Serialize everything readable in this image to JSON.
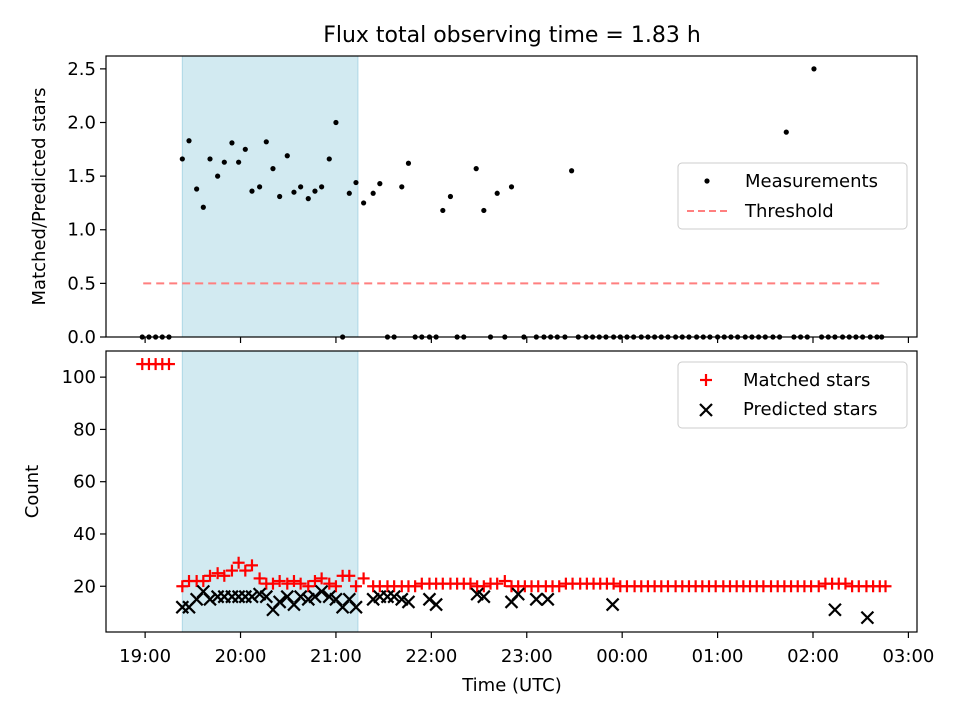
{
  "figure": {
    "title": "Flux total observing time = 1.83 h"
  },
  "chart_data": [
    {
      "type": "scatter",
      "title": "Flux total observing time = 1.83 h",
      "xlabel": "",
      "ylabel": "Matched/Predicted stars",
      "xlim": [
        18.59,
        27.09
      ],
      "ylim": [
        0,
        2.62
      ],
      "yticks": [
        0.0,
        0.5,
        1.0,
        1.5,
        2.0,
        2.5
      ],
      "ytick_labels": [
        "0.0",
        "0.5",
        "1.0",
        "1.5",
        "2.0",
        "2.5"
      ],
      "xticks": [
        19,
        20,
        21,
        22,
        23,
        24,
        25,
        26,
        27
      ],
      "shaded_span": [
        19.39,
        21.23
      ],
      "shaded_color": "#add8e6",
      "legend_loc": "center right",
      "threshold": {
        "name": "Threshold",
        "value": 0.5,
        "x_range": [
          18.98,
          26.72
        ],
        "color": "#ff7f7f",
        "style": "dashed"
      },
      "series": [
        {
          "name": "Measurements",
          "marker": "dot",
          "color": "#000000",
          "x": [
            18.97,
            19.04,
            19.11,
            19.18,
            19.25,
            19.39,
            19.46,
            19.54,
            19.61,
            19.68,
            19.76,
            19.83,
            19.91,
            19.98,
            20.05,
            20.12,
            20.2,
            20.27,
            20.34,
            20.41,
            20.49,
            20.56,
            20.63,
            20.71,
            20.78,
            20.85,
            20.93,
            21.0,
            21.07,
            21.14,
            21.21,
            21.29,
            21.39,
            21.46,
            21.54,
            21.61,
            21.69,
            21.76,
            21.83,
            21.9,
            21.98,
            22.05,
            22.12,
            22.2,
            22.27,
            22.34,
            22.47,
            22.55,
            22.62,
            22.69,
            22.77,
            22.84,
            22.97,
            23.1,
            23.18,
            23.25,
            23.32,
            23.4,
            23.47,
            23.54,
            23.62,
            23.69,
            23.76,
            23.83,
            23.91,
            23.98,
            24.05,
            24.12,
            24.2,
            24.27,
            24.34,
            24.41,
            24.48,
            24.56,
            24.63,
            24.7,
            24.78,
            24.85,
            24.92,
            25.0,
            25.07,
            25.14,
            25.21,
            25.29,
            25.36,
            25.43,
            25.5,
            25.58,
            25.65,
            25.72,
            25.8,
            25.87,
            25.94,
            26.01,
            26.09,
            26.16,
            26.23,
            26.31,
            26.38,
            26.45,
            26.52,
            26.6,
            26.67,
            26.72
          ],
          "y": [
            0,
            0,
            0,
            0,
            0,
            1.66,
            1.83,
            1.38,
            1.21,
            1.66,
            1.5,
            1.63,
            1.81,
            1.63,
            1.75,
            1.36,
            1.4,
            1.82,
            1.57,
            1.31,
            1.69,
            1.35,
            1.4,
            1.29,
            1.36,
            1.4,
            1.66,
            2.0,
            0,
            1.34,
            1.44,
            1.25,
            1.34,
            1.43,
            0,
            0,
            1.4,
            1.62,
            0,
            0,
            0,
            0,
            1.18,
            1.31,
            0,
            0,
            1.57,
            1.18,
            0,
            1.34,
            0,
            1.4,
            0,
            0,
            0,
            0,
            0,
            0,
            1.55,
            0,
            0,
            0,
            0,
            0,
            0,
            0,
            0,
            0,
            0,
            0,
            0,
            0,
            0,
            0,
            0,
            0,
            0,
            0,
            0,
            0,
            0,
            0,
            0,
            0,
            0,
            0,
            0,
            0,
            0,
            1.91,
            0,
            0,
            0,
            2.5,
            0,
            0,
            0,
            0,
            0,
            0,
            0,
            0,
            0,
            0
          ]
        }
      ]
    },
    {
      "type": "scatter",
      "title": "",
      "xlabel": "Time (UTC)",
      "ylabel": "Count",
      "xlim": [
        18.59,
        27.09
      ],
      "ylim": [
        2.5,
        110
      ],
      "yticks": [
        20,
        40,
        60,
        80,
        100
      ],
      "ytick_labels": [
        "20",
        "40",
        "60",
        "80",
        "100"
      ],
      "xticks": [
        19,
        20,
        21,
        22,
        23,
        24,
        25,
        26,
        27
      ],
      "xtick_labels": [
        "19:00",
        "20:00",
        "21:00",
        "22:00",
        "23:00",
        "00:00",
        "01:00",
        "02:00",
        "03:00"
      ],
      "shaded_span": [
        19.39,
        21.23
      ],
      "shaded_color": "#add8e6",
      "legend_loc": "upper right",
      "series": [
        {
          "name": "Matched stars",
          "marker": "plus",
          "color": "#ff0000",
          "x": [
            18.97,
            19.04,
            19.11,
            19.18,
            19.25,
            19.39,
            19.46,
            19.54,
            19.61,
            19.68,
            19.76,
            19.83,
            19.91,
            19.98,
            20.05,
            20.12,
            20.2,
            20.27,
            20.34,
            20.41,
            20.49,
            20.56,
            20.63,
            20.71,
            20.78,
            20.85,
            20.93,
            21.0,
            21.07,
            21.14,
            21.21,
            21.29,
            21.39,
            21.46,
            21.54,
            21.61,
            21.69,
            21.76,
            21.83,
            21.9,
            21.98,
            22.05,
            22.12,
            22.2,
            22.27,
            22.34,
            22.41,
            22.48,
            22.55,
            22.62,
            22.69,
            22.77,
            22.84,
            22.91,
            22.98,
            23.05,
            23.12,
            23.2,
            23.27,
            23.34,
            23.41,
            23.48,
            23.56,
            23.63,
            23.7,
            23.77,
            23.84,
            23.91,
            23.98,
            24.05,
            24.13,
            24.2,
            24.27,
            24.34,
            24.41,
            24.48,
            24.56,
            24.63,
            24.7,
            24.77,
            24.84,
            24.91,
            24.98,
            25.06,
            25.13,
            25.2,
            25.27,
            25.34,
            25.41,
            25.48,
            25.56,
            25.63,
            25.7,
            25.77,
            25.84,
            25.91,
            25.98,
            26.06,
            26.13,
            26.2,
            26.27,
            26.34,
            26.41,
            26.48,
            26.56,
            26.63,
            26.7,
            26.76
          ],
          "y": [
            105,
            105,
            105,
            105,
            105,
            20,
            22,
            22,
            22,
            24,
            25,
            24,
            26,
            29,
            26,
            28,
            23,
            21,
            21,
            22,
            21,
            22,
            21,
            20,
            22,
            23,
            21,
            20,
            24,
            24,
            20,
            23,
            20,
            20,
            20,
            20,
            20,
            20,
            20,
            21,
            21,
            21,
            21,
            21,
            21,
            21,
            21,
            20,
            20,
            21,
            21,
            22,
            20,
            20,
            20,
            20,
            20,
            20,
            20,
            20,
            21,
            21,
            21,
            21,
            21,
            21,
            21,
            21,
            20,
            20,
            20,
            20,
            20,
            20,
            20,
            20,
            20,
            20,
            20,
            20,
            20,
            20,
            20,
            20,
            20,
            20,
            20,
            20,
            20,
            20,
            20,
            20,
            20,
            20,
            20,
            20,
            20,
            20,
            21,
            21,
            21,
            21,
            20,
            20,
            20,
            20,
            20,
            20
          ]
        },
        {
          "name": "Predicted stars",
          "marker": "x",
          "color": "#000000",
          "x": [
            19.39,
            19.46,
            19.54,
            19.61,
            19.68,
            19.76,
            19.83,
            19.91,
            19.98,
            20.05,
            20.12,
            20.2,
            20.27,
            20.34,
            20.41,
            20.49,
            20.56,
            20.63,
            20.71,
            20.78,
            20.85,
            20.93,
            21.0,
            21.07,
            21.14,
            21.21,
            21.39,
            21.46,
            21.54,
            21.61,
            21.69,
            21.76,
            21.98,
            22.05,
            22.48,
            22.55,
            22.84,
            22.91,
            23.1,
            23.22,
            23.9,
            26.23,
            26.57
          ],
          "y": [
            12,
            12,
            15,
            18,
            15,
            16,
            16,
            16,
            16,
            16,
            16,
            17,
            16,
            11,
            14,
            16,
            13,
            16,
            15,
            16,
            18,
            16,
            15,
            12,
            15,
            12,
            15,
            16,
            16,
            16,
            15,
            14,
            15,
            13,
            17,
            16,
            14,
            17,
            15,
            15,
            13,
            11,
            8
          ]
        }
      ]
    }
  ]
}
